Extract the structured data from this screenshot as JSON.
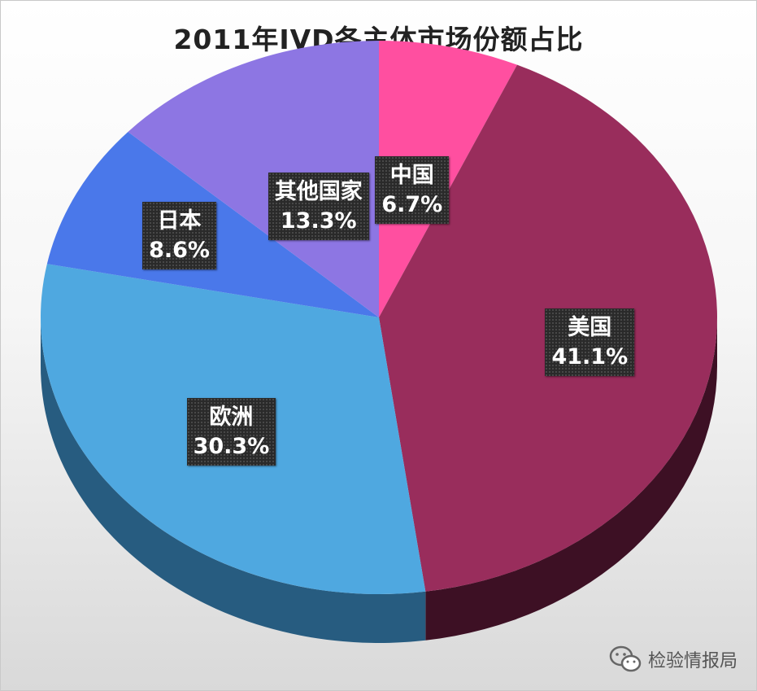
{
  "chart_data": {
    "type": "pie",
    "title": "2011年IVD各主体市场份额占比",
    "slices": [
      {
        "label": "中国",
        "value": 6.7,
        "display": "6.7%",
        "color": "#ff4fa0",
        "side": "#b8306f"
      },
      {
        "label": "美国",
        "value": 41.1,
        "display": "41.1%",
        "color": "#992d5c",
        "side": "#3d1024"
      },
      {
        "label": "欧洲",
        "value": 30.3,
        "display": "30.3%",
        "color": "#4fa8e0",
        "side": "#275c80"
      },
      {
        "label": "日本",
        "value": 8.6,
        "display": "8.6%",
        "color": "#4a78ea",
        "side": "#2a4796"
      },
      {
        "label": "其他国家",
        "value": 13.3,
        "display": "13.3%",
        "color": "#8d76e3",
        "side": "#5a4aa0"
      }
    ]
  },
  "watermark": {
    "text": "检验情报局",
    "icon": "wechat-icon"
  }
}
